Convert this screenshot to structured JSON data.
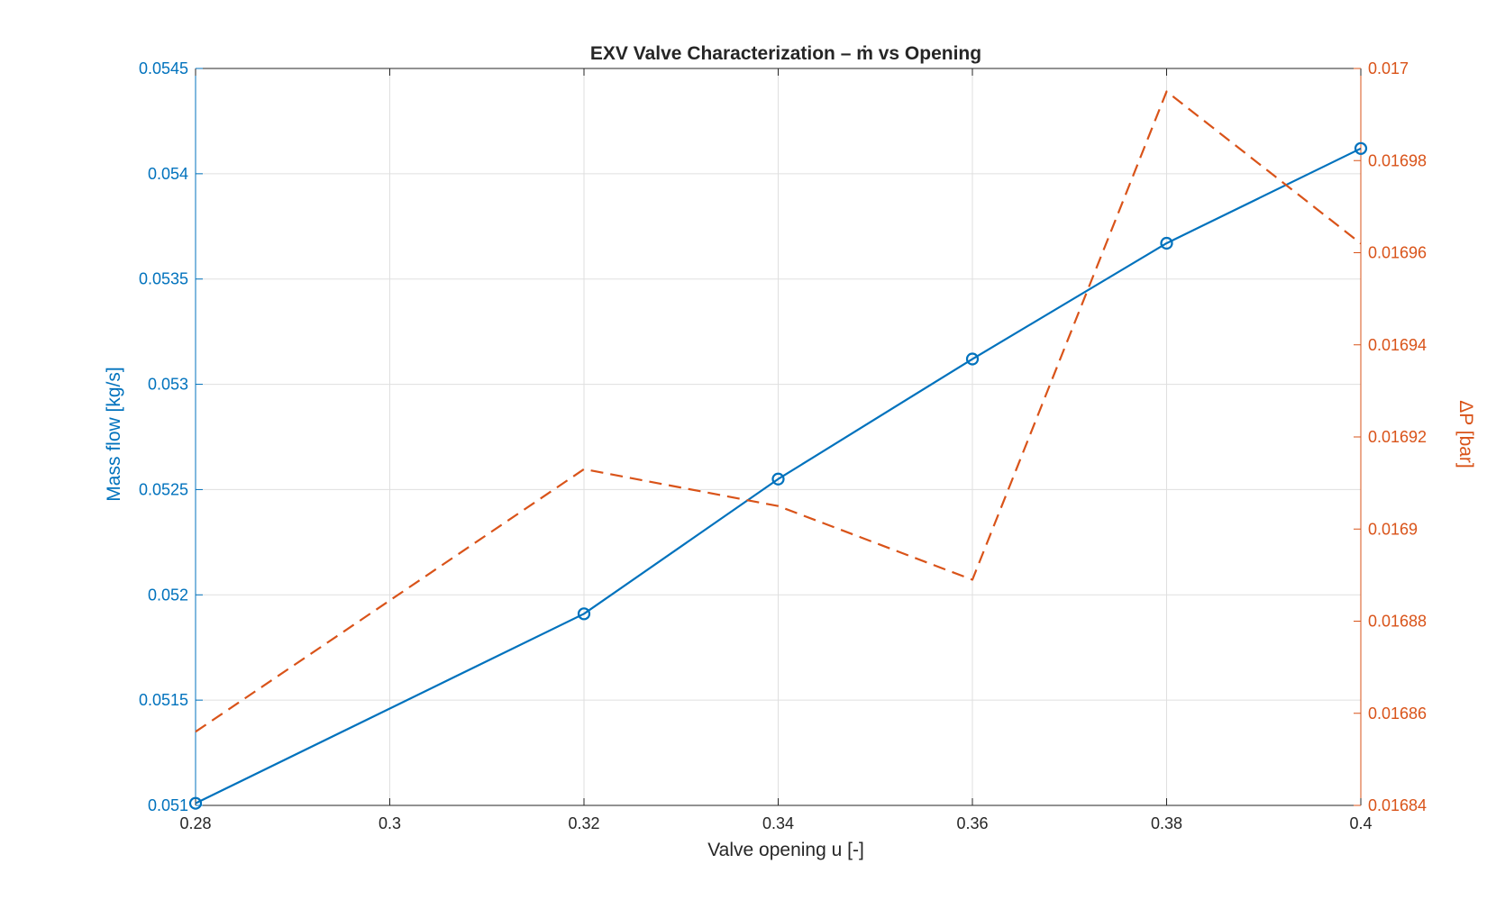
{
  "chart_data": {
    "type": "line",
    "title": "EXV Valve Characterization – ṁ vs Opening",
    "xlabel": "Valve opening u [-]",
    "ylabel_left": "Mass flow [kg/s]",
    "ylabel_right": "ΔP [bar]",
    "xlim": [
      0.28,
      0.4
    ],
    "ylim_left": [
      0.051,
      0.0545
    ],
    "ylim_right": [
      0.01684,
      0.017
    ],
    "x_ticks": [
      "0.28",
      "0.3",
      "0.32",
      "0.34",
      "0.36",
      "0.38",
      "0.4"
    ],
    "y_left_ticks": [
      "0.051",
      "0.0515",
      "0.052",
      "0.0525",
      "0.053",
      "0.0535",
      "0.054",
      "0.0545"
    ],
    "y_right_ticks": [
      "0.01684",
      "0.01686",
      "0.01688",
      "0.0169",
      "0.01692",
      "0.01694",
      "0.01696",
      "0.01698",
      "0.017"
    ],
    "grid": true,
    "series": [
      {
        "axis": "left",
        "color": "#0072BD",
        "style": "solid-circle-markers",
        "x": [
          0.28,
          0.32,
          0.34,
          0.36,
          0.38,
          0.4
        ],
        "values": [
          0.05101,
          0.05191,
          0.05255,
          0.05312,
          0.05367,
          0.05412
        ]
      },
      {
        "axis": "right",
        "color": "#D95319",
        "style": "dashed",
        "x": [
          0.28,
          0.32,
          0.34,
          0.36,
          0.38,
          0.4
        ],
        "values": [
          0.016856,
          0.016913,
          0.016905,
          0.016889,
          0.016995,
          0.016962
        ]
      }
    ],
    "colors": {
      "left_axis": "#0072BD",
      "right_axis": "#D95319",
      "text": "#262626",
      "grid": "#DFDFDF",
      "axes": "#262626"
    }
  }
}
